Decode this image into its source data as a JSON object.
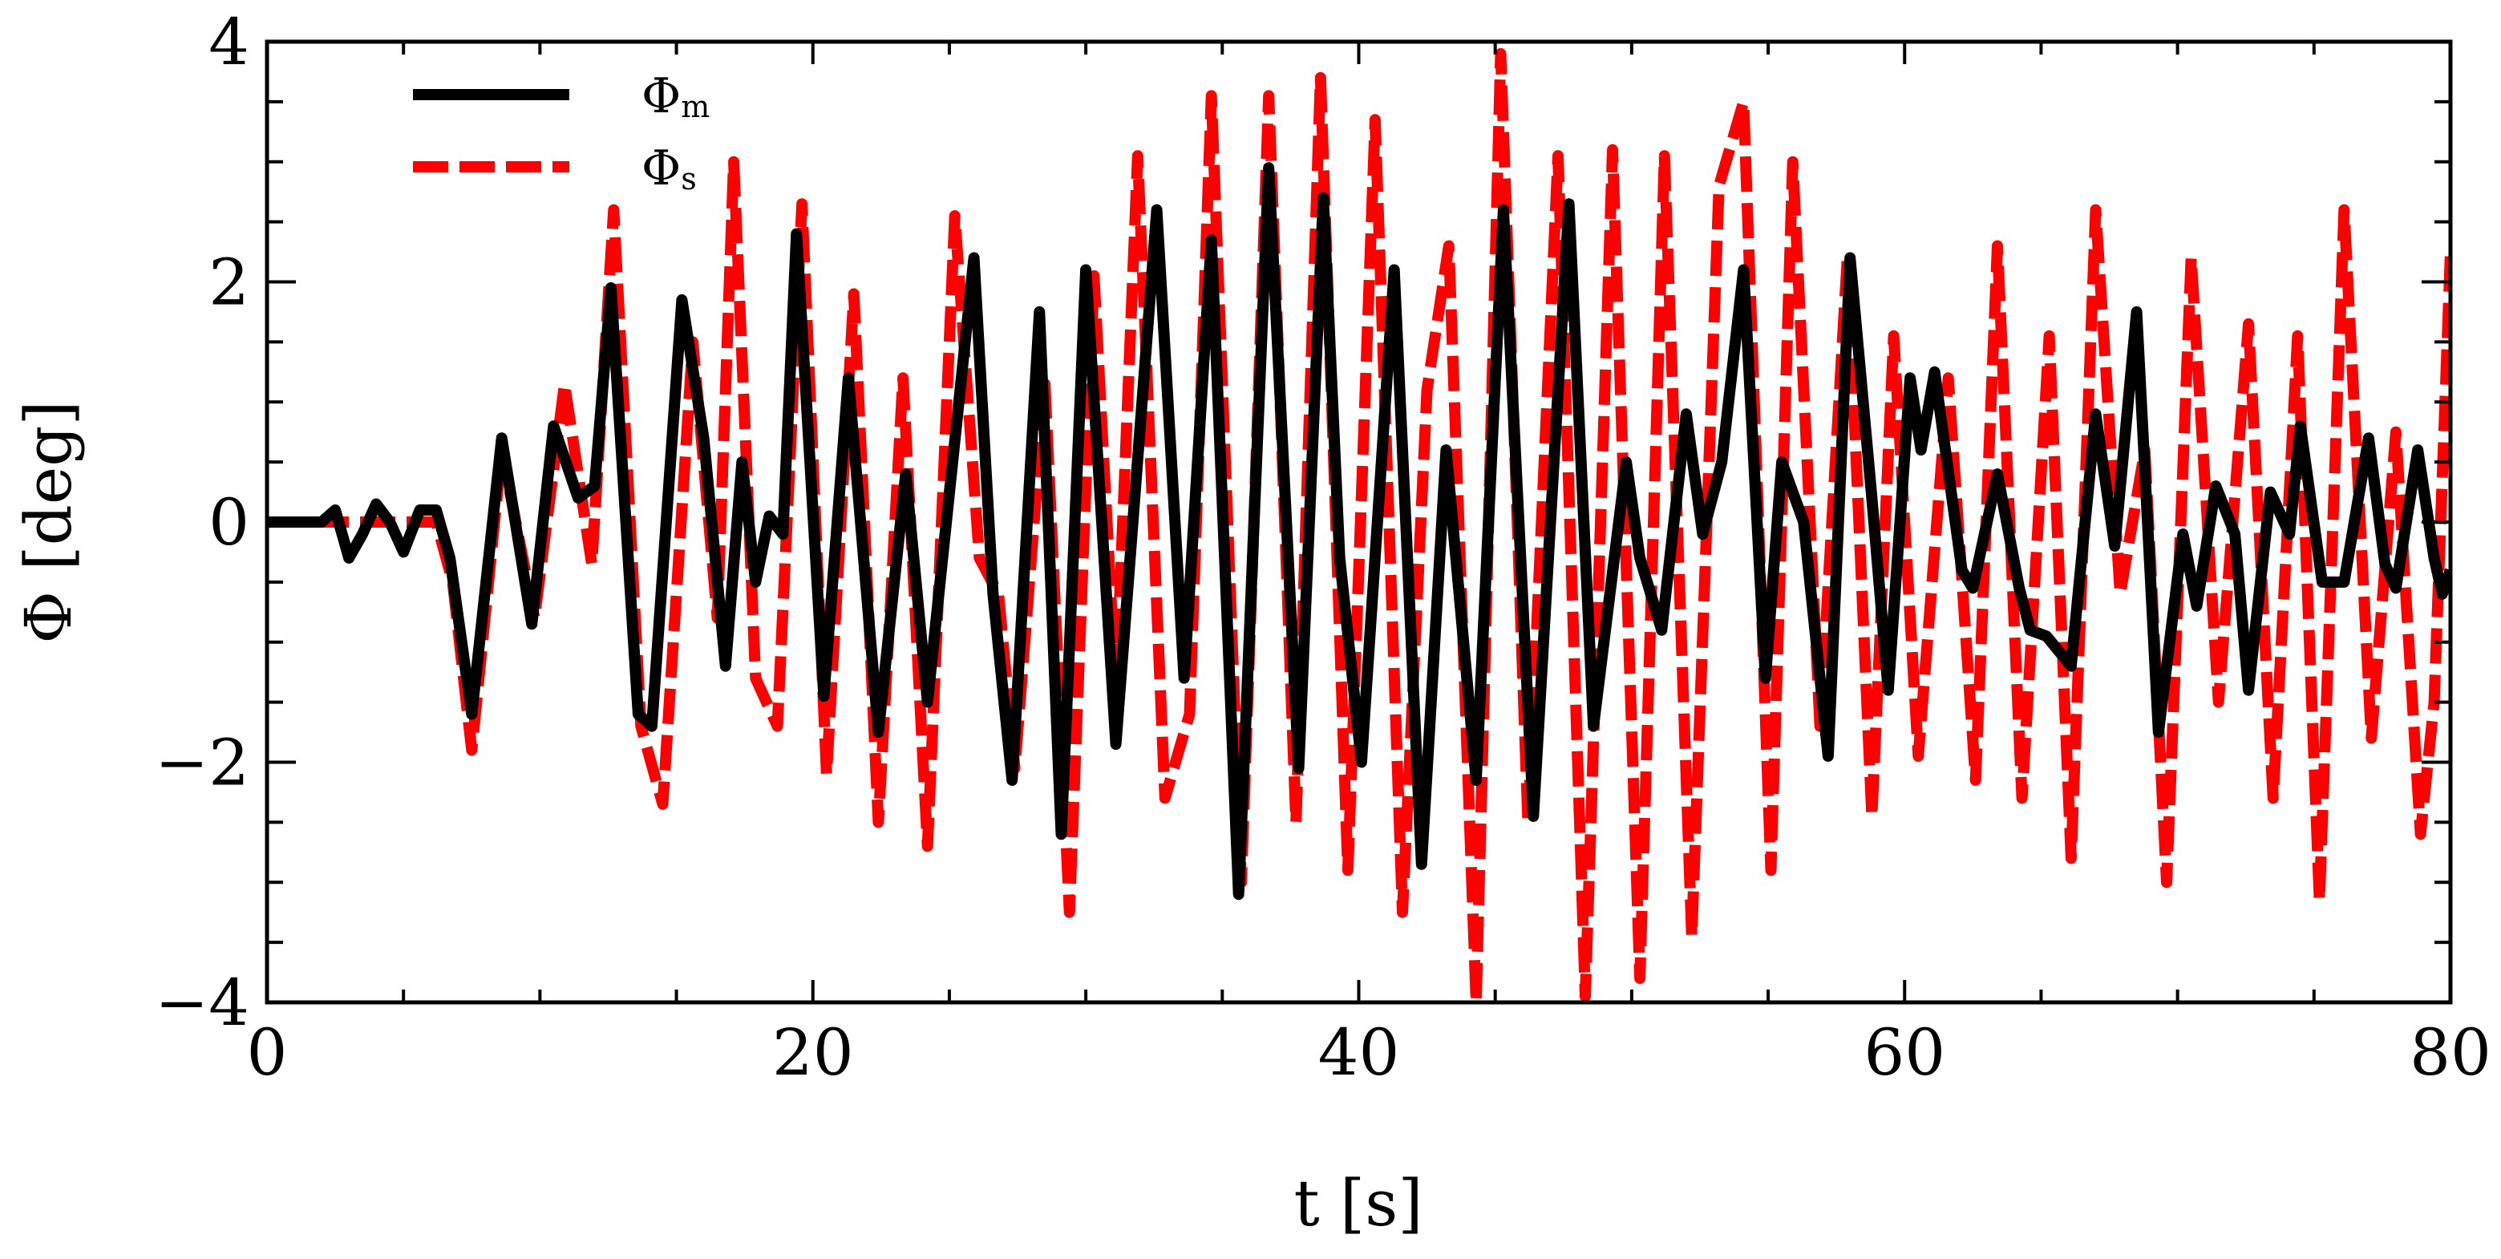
{
  "chart_data": {
    "type": "line",
    "title": "",
    "xlabel": "t [s]",
    "ylabel": "Φ [deg]",
    "xlim": [
      0,
      80
    ],
    "ylim": [
      -4,
      4
    ],
    "xticks": [
      0,
      20,
      40,
      60,
      80
    ],
    "xtick_labels": [
      "0",
      "20",
      "40",
      "60",
      "80"
    ],
    "yticks": [
      -4,
      -2,
      0,
      2,
      4
    ],
    "ytick_labels": [
      "−4",
      "−2",
      "0",
      "2",
      "4"
    ],
    "x_minor_step": 5,
    "y_minor_step": 0.5,
    "grid": false,
    "legend_position": "top-left",
    "series": [
      {
        "name": "Φm",
        "legend_symbol": "Φ",
        "legend_subscript": "m",
        "color": "#000000",
        "style": "solid",
        "points": [
          [
            0,
            0
          ],
          [
            2,
            0
          ],
          [
            2.5,
            0.1
          ],
          [
            3,
            -0.3
          ],
          [
            3.5,
            -0.1
          ],
          [
            4,
            0.15
          ],
          [
            4.5,
            0
          ],
          [
            5,
            -0.25
          ],
          [
            5.6,
            0.1
          ],
          [
            6.2,
            0.1
          ],
          [
            6.7,
            -0.3
          ],
          [
            7.5,
            -1.6
          ],
          [
            8.6,
            0.7
          ],
          [
            9.7,
            -0.85
          ],
          [
            10.5,
            0.8
          ],
          [
            11.4,
            0.2
          ],
          [
            12.0,
            0.3
          ],
          [
            12.6,
            1.95
          ],
          [
            13.6,
            -1.6
          ],
          [
            14.1,
            -1.7
          ],
          [
            15.2,
            1.85
          ],
          [
            16.0,
            0.7
          ],
          [
            16.8,
            -1.2
          ],
          [
            17.4,
            0.5
          ],
          [
            17.9,
            -0.5
          ],
          [
            18.4,
            0.05
          ],
          [
            18.9,
            -0.1
          ],
          [
            19.4,
            2.4
          ],
          [
            20.4,
            -1.45
          ],
          [
            21.3,
            1.2
          ],
          [
            22.4,
            -1.75
          ],
          [
            23.4,
            0.4
          ],
          [
            24.2,
            -1.5
          ],
          [
            25.9,
            2.2
          ],
          [
            26.6,
            -0.6
          ],
          [
            27.3,
            -2.15
          ],
          [
            28.3,
            1.75
          ],
          [
            29.1,
            -2.6
          ],
          [
            30.0,
            2.1
          ],
          [
            31.1,
            -1.85
          ],
          [
            32.6,
            2.6
          ],
          [
            33.6,
            -1.3
          ],
          [
            34.6,
            2.35
          ],
          [
            35.6,
            -3.1
          ],
          [
            36.7,
            2.95
          ],
          [
            37.8,
            -2.05
          ],
          [
            38.7,
            2.7
          ],
          [
            39.3,
            -0.3
          ],
          [
            40.1,
            -2.0
          ],
          [
            41.3,
            2.1
          ],
          [
            42.3,
            -2.85
          ],
          [
            43.2,
            0.6
          ],
          [
            44.3,
            -2.15
          ],
          [
            45.3,
            2.6
          ],
          [
            46.4,
            -2.45
          ],
          [
            47.7,
            2.65
          ],
          [
            48.6,
            -1.7
          ],
          [
            49.8,
            0.5
          ],
          [
            50.3,
            -0.3
          ],
          [
            51.1,
            -0.9
          ],
          [
            52.0,
            0.9
          ],
          [
            52.6,
            -0.1
          ],
          [
            53.3,
            0.5
          ],
          [
            54.1,
            2.1
          ],
          [
            54.9,
            -1.3
          ],
          [
            55.5,
            0.5
          ],
          [
            56.3,
            0.0
          ],
          [
            57.2,
            -1.95
          ],
          [
            58.0,
            2.2
          ],
          [
            58.8,
            0.2
          ],
          [
            59.4,
            -1.4
          ],
          [
            60.2,
            1.2
          ],
          [
            60.6,
            0.6
          ],
          [
            61.1,
            1.25
          ],
          [
            62.1,
            -0.4
          ],
          [
            62.5,
            -0.55
          ],
          [
            63.4,
            0.4
          ],
          [
            64.2,
            -0.55
          ],
          [
            64.6,
            -0.9
          ],
          [
            65.2,
            -0.95
          ],
          [
            66.1,
            -1.2
          ],
          [
            67.0,
            0.9
          ],
          [
            67.7,
            -0.2
          ],
          [
            68.5,
            1.75
          ],
          [
            69.3,
            -1.75
          ],
          [
            70.2,
            -0.1
          ],
          [
            70.7,
            -0.7
          ],
          [
            71.4,
            0.3
          ],
          [
            72.1,
            -0.1
          ],
          [
            72.6,
            -1.4
          ],
          [
            73.4,
            0.25
          ],
          [
            74.1,
            -0.1
          ],
          [
            74.5,
            0.8
          ],
          [
            75.3,
            -0.5
          ],
          [
            76.1,
            -0.5
          ],
          [
            77.0,
            0.7
          ],
          [
            77.6,
            -0.35
          ],
          [
            78.0,
            -0.55
          ],
          [
            78.8,
            0.6
          ],
          [
            79.4,
            -0.3
          ],
          [
            79.7,
            -0.6
          ],
          [
            80.0,
            -0.4
          ]
        ]
      },
      {
        "name": "Φs",
        "legend_symbol": "Φ",
        "legend_subscript": "s",
        "color": "#ff0000",
        "style": "dashed",
        "points": [
          [
            0,
            0
          ],
          [
            6.2,
            0
          ],
          [
            6.8,
            -0.5
          ],
          [
            7.5,
            -1.9
          ],
          [
            8.6,
            0.6
          ],
          [
            9.8,
            -0.8
          ],
          [
            10.9,
            1.15
          ],
          [
            11.9,
            -0.35
          ],
          [
            12.7,
            2.6
          ],
          [
            13.7,
            -1.7
          ],
          [
            14.5,
            -2.35
          ],
          [
            15.6,
            1.5
          ],
          [
            16.5,
            -0.8
          ],
          [
            17.1,
            3.0
          ],
          [
            17.9,
            -1.3
          ],
          [
            18.7,
            -1.7
          ],
          [
            19.6,
            2.65
          ],
          [
            20.5,
            -2.1
          ],
          [
            21.5,
            1.9
          ],
          [
            22.4,
            -2.5
          ],
          [
            23.3,
            1.2
          ],
          [
            24.2,
            -2.7
          ],
          [
            25.2,
            2.55
          ],
          [
            26.1,
            -0.3
          ],
          [
            26.8,
            -0.6
          ],
          [
            27.4,
            -2.05
          ],
          [
            28.5,
            1.15
          ],
          [
            29.4,
            -3.25
          ],
          [
            30.3,
            2.05
          ],
          [
            31.1,
            -1.4
          ],
          [
            31.9,
            3.05
          ],
          [
            32.9,
            -2.3
          ],
          [
            33.8,
            -1.6
          ],
          [
            34.6,
            3.55
          ],
          [
            35.7,
            -3.0
          ],
          [
            36.7,
            3.55
          ],
          [
            37.7,
            -2.5
          ],
          [
            38.6,
            3.7
          ],
          [
            39.6,
            -2.9
          ],
          [
            40.6,
            3.35
          ],
          [
            41.6,
            -3.25
          ],
          [
            42.5,
            1.1
          ],
          [
            43.3,
            2.3
          ],
          [
            44.3,
            -4.0
          ],
          [
            45.2,
            3.9
          ],
          [
            46.2,
            -2.5
          ],
          [
            47.3,
            3.05
          ],
          [
            48.3,
            -3.95
          ],
          [
            49.3,
            3.1
          ],
          [
            50.3,
            -3.8
          ],
          [
            51.2,
            3.05
          ],
          [
            52.2,
            -3.45
          ],
          [
            53.2,
            2.8
          ],
          [
            54.1,
            3.5
          ],
          [
            55.1,
            -2.9
          ],
          [
            55.9,
            3.0
          ],
          [
            56.9,
            -1.7
          ],
          [
            57.9,
            2.2
          ],
          [
            58.8,
            -2.45
          ],
          [
            59.6,
            1.55
          ],
          [
            60.5,
            -1.95
          ],
          [
            61.6,
            1.2
          ],
          [
            62.6,
            -2.15
          ],
          [
            63.4,
            2.3
          ],
          [
            64.3,
            -2.3
          ],
          [
            65.3,
            1.55
          ],
          [
            66.1,
            -2.8
          ],
          [
            67.0,
            2.6
          ],
          [
            67.9,
            -0.6
          ],
          [
            68.8,
            0.6
          ],
          [
            69.6,
            -3.0
          ],
          [
            70.5,
            2.2
          ],
          [
            71.5,
            -1.5
          ],
          [
            72.6,
            1.65
          ],
          [
            73.5,
            -2.3
          ],
          [
            74.4,
            1.55
          ],
          [
            75.2,
            -3.15
          ],
          [
            76.1,
            2.6
          ],
          [
            77.1,
            -1.8
          ],
          [
            78.0,
            0.75
          ],
          [
            78.9,
            -2.6
          ],
          [
            79.4,
            -1.5
          ],
          [
            80.0,
            2.25
          ]
        ]
      }
    ]
  }
}
